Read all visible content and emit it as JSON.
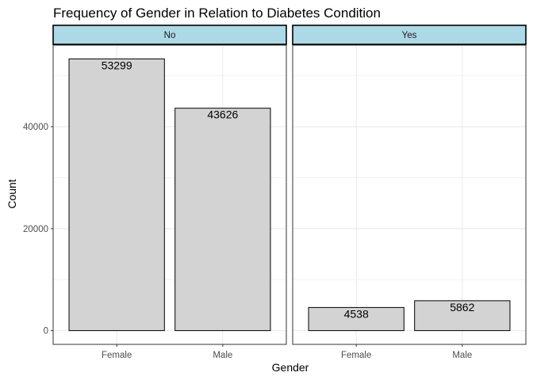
{
  "chart_data": {
    "type": "bar",
    "title": "Frequency of Gender in Relation to Diabetes Condition",
    "xlabel": "Gender",
    "ylabel": "Count",
    "ylim": [
      -2700,
      56000
    ],
    "yticks": [
      0,
      20000,
      40000
    ],
    "grid": true,
    "categories": [
      "Female",
      "Male"
    ],
    "facets": [
      {
        "label": "No",
        "values": [
          53299,
          43626
        ],
        "labels": [
          "53299",
          "43626"
        ]
      },
      {
        "label": "Yes",
        "values": [
          4538,
          5862
        ],
        "labels": [
          "4538",
          "5862"
        ]
      }
    ],
    "colors": {
      "bar_fill": "#d3d3d3",
      "bar_stroke": "#000000",
      "strip_fill": "#add8e6",
      "grid": "#ebebeb",
      "panel_border": "#333333"
    }
  }
}
